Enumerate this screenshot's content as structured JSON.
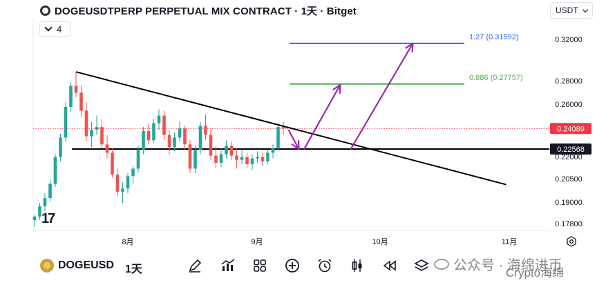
{
  "header": {
    "title": "DOGEUSDTPERP PERPETUAL MIX CONTRACT · 1天 · Bitget",
    "indicator_count": "4",
    "currency": "USDT"
  },
  "colors": {
    "up": "#26a69a",
    "down": "#ef5350",
    "trendline": "#000000",
    "support": "#000000",
    "fib_1": "#4caf50",
    "fib_2": "#2962ff",
    "arrow": "#9c27b0",
    "last_price": "#f23645"
  },
  "chart_data": {
    "type": "candlestick",
    "y_axis": {
      "ticks": [
        "0.32000",
        "0.28000",
        "0.26000",
        "0.22000",
        "0.20500",
        "0.19000",
        "0.17800"
      ],
      "scale": "log"
    },
    "x_axis": {
      "ticks": [
        "8月",
        "9月",
        "10月",
        "11月"
      ]
    },
    "price_labels": [
      {
        "value": 0.24089,
        "text": "0.24089",
        "style": "last-price"
      },
      {
        "value": 0.22568,
        "text": "0.22568",
        "style": "support"
      }
    ],
    "levels": [
      {
        "label": "1.27 (0.31592)",
        "value": 0.31592,
        "color": "fib_2"
      },
      {
        "label": "0.886 (0.27757)",
        "value": 0.27757,
        "color": "fib_1"
      },
      {
        "label": "",
        "value": 0.22568,
        "color": "support"
      }
    ],
    "trendline": {
      "from": {
        "day": 8,
        "price": 0.2885
      },
      "to": {
        "day": 91,
        "price": 0.2015
      }
    },
    "candles_start_day": 0,
    "candles": [
      [
        0.18,
        0.183,
        0.176,
        0.182
      ],
      [
        0.182,
        0.19,
        0.18,
        0.188
      ],
      [
        0.188,
        0.196,
        0.185,
        0.193
      ],
      [
        0.193,
        0.205,
        0.191,
        0.202
      ],
      [
        0.202,
        0.222,
        0.2,
        0.22
      ],
      [
        0.22,
        0.237,
        0.217,
        0.234
      ],
      [
        0.234,
        0.262,
        0.231,
        0.258
      ],
      [
        0.258,
        0.279,
        0.254,
        0.276
      ],
      [
        0.276,
        0.288,
        0.266,
        0.27
      ],
      [
        0.27,
        0.276,
        0.25,
        0.255
      ],
      [
        0.255,
        0.262,
        0.231,
        0.235
      ],
      [
        0.235,
        0.246,
        0.227,
        0.24
      ],
      [
        0.24,
        0.251,
        0.236,
        0.242
      ],
      [
        0.242,
        0.248,
        0.226,
        0.229
      ],
      [
        0.229,
        0.236,
        0.219,
        0.223
      ],
      [
        0.223,
        0.226,
        0.206,
        0.208
      ],
      [
        0.208,
        0.212,
        0.194,
        0.197
      ],
      [
        0.197,
        0.203,
        0.19,
        0.199
      ],
      [
        0.199,
        0.209,
        0.196,
        0.207
      ],
      [
        0.207,
        0.214,
        0.202,
        0.212
      ],
      [
        0.212,
        0.228,
        0.209,
        0.225
      ],
      [
        0.225,
        0.242,
        0.222,
        0.239
      ],
      [
        0.239,
        0.245,
        0.229,
        0.232
      ],
      [
        0.232,
        0.248,
        0.23,
        0.245
      ],
      [
        0.245,
        0.256,
        0.24,
        0.251
      ],
      [
        0.251,
        0.255,
        0.232,
        0.236
      ],
      [
        0.236,
        0.24,
        0.222,
        0.227
      ],
      [
        0.227,
        0.238,
        0.224,
        0.234
      ],
      [
        0.234,
        0.246,
        0.231,
        0.241
      ],
      [
        0.241,
        0.243,
        0.225,
        0.229
      ],
      [
        0.229,
        0.232,
        0.209,
        0.212
      ],
      [
        0.212,
        0.228,
        0.209,
        0.225
      ],
      [
        0.225,
        0.246,
        0.222,
        0.243
      ],
      [
        0.243,
        0.252,
        0.232,
        0.236
      ],
      [
        0.236,
        0.24,
        0.218,
        0.221
      ],
      [
        0.221,
        0.228,
        0.212,
        0.216
      ],
      [
        0.216,
        0.226,
        0.213,
        0.222
      ],
      [
        0.222,
        0.232,
        0.219,
        0.228
      ],
      [
        0.228,
        0.231,
        0.218,
        0.221
      ],
      [
        0.221,
        0.226,
        0.212,
        0.218
      ],
      [
        0.218,
        0.225,
        0.215,
        0.22
      ],
      [
        0.22,
        0.223,
        0.212,
        0.215
      ],
      [
        0.215,
        0.222,
        0.211,
        0.219
      ],
      [
        0.219,
        0.224,
        0.216,
        0.22
      ],
      [
        0.22,
        0.223,
        0.214,
        0.217
      ],
      [
        0.217,
        0.225,
        0.215,
        0.223
      ],
      [
        0.223,
        0.229,
        0.219,
        0.226
      ],
      [
        0.226,
        0.245,
        0.224,
        0.242
      ],
      [
        0.242,
        0.246,
        0.236,
        0.2409
      ]
    ],
    "arrows": [
      {
        "from": {
          "day": 49,
          "price": 0.24
        },
        "to": {
          "day": 51,
          "price": 0.2255
        }
      },
      {
        "from": {
          "day": 52,
          "price": 0.2255
        },
        "to": {
          "day": 59,
          "price": 0.277
        }
      },
      {
        "from": {
          "day": 61,
          "price": 0.2255
        },
        "to": {
          "day": 73,
          "price": 0.316
        }
      }
    ]
  },
  "toolbar": {
    "symbol": "DOGEUSD",
    "interval": "1天",
    "tools": [
      "pen-icon",
      "indicator-chart-icon",
      "layout-grid-icon",
      "add-circle-icon",
      "alarm-clock-icon",
      "candle-style-icon",
      "replay-icon",
      "layers-icon"
    ]
  },
  "watermark": {
    "text": "公众号 · 海绵进币",
    "sub": "Crypto海绵"
  },
  "branding": {
    "tv_logo": "17"
  }
}
